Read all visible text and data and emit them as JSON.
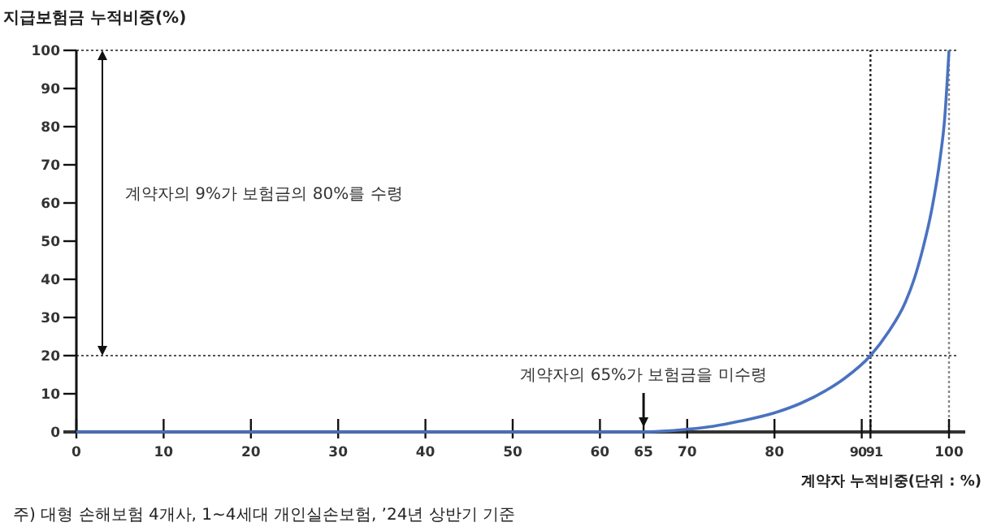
{
  "chart_data": {
    "type": "line",
    "ylabel": "지급보험금 누적비중(%)",
    "xlabel": "계약자 누적비중(단위 : %)",
    "x": [
      0,
      10,
      20,
      30,
      40,
      50,
      60,
      65,
      68,
      70,
      73,
      76,
      80,
      83,
      86,
      88,
      91,
      93,
      95,
      96,
      97,
      98,
      99,
      99.5,
      100
    ],
    "series": [
      {
        "color": "#4a72c0",
        "values": [
          0,
          0,
          0,
          0,
          0,
          0,
          0,
          0,
          0.3,
          0.7,
          1.5,
          2.8,
          5,
          7.5,
          11,
          14,
          20,
          26,
          34,
          40,
          48,
          58,
          72,
          82,
          100
        ]
      }
    ],
    "xlim": [
      0,
      100
    ],
    "xticks": [
      0,
      10,
      20,
      30,
      40,
      50,
      60,
      65,
      70,
      80,
      90,
      91,
      100
    ],
    "ylim": [
      0,
      100
    ],
    "yticks": [
      0,
      10,
      20,
      30,
      40,
      50,
      60,
      70,
      80,
      90,
      100
    ],
    "marker": "none",
    "line_style": "solid",
    "grid": false,
    "ref_lines": [
      {
        "axis": "y",
        "value": 100,
        "color": "#555555",
        "line_style": "dotted"
      },
      {
        "axis": "y",
        "value": 20,
        "color": "#555555",
        "line_style": "dotted"
      },
      {
        "axis": "x",
        "value": 91,
        "color": "#222222",
        "line_style": "dotted"
      },
      {
        "axis": "x",
        "value": 100,
        "color": "#888888",
        "line_style": "dotted"
      }
    ],
    "annotations": [
      "계약자의 9%가 보험금의 80%를 수령",
      {
        "text": "계약자의 65%가 보험금을 미수령",
        "x": 65,
        "y": 0
      },
      "주) 대형 손해보험 4개사, 1~4세대 개인실손보험, ’24년 상반기 기준"
    ]
  }
}
